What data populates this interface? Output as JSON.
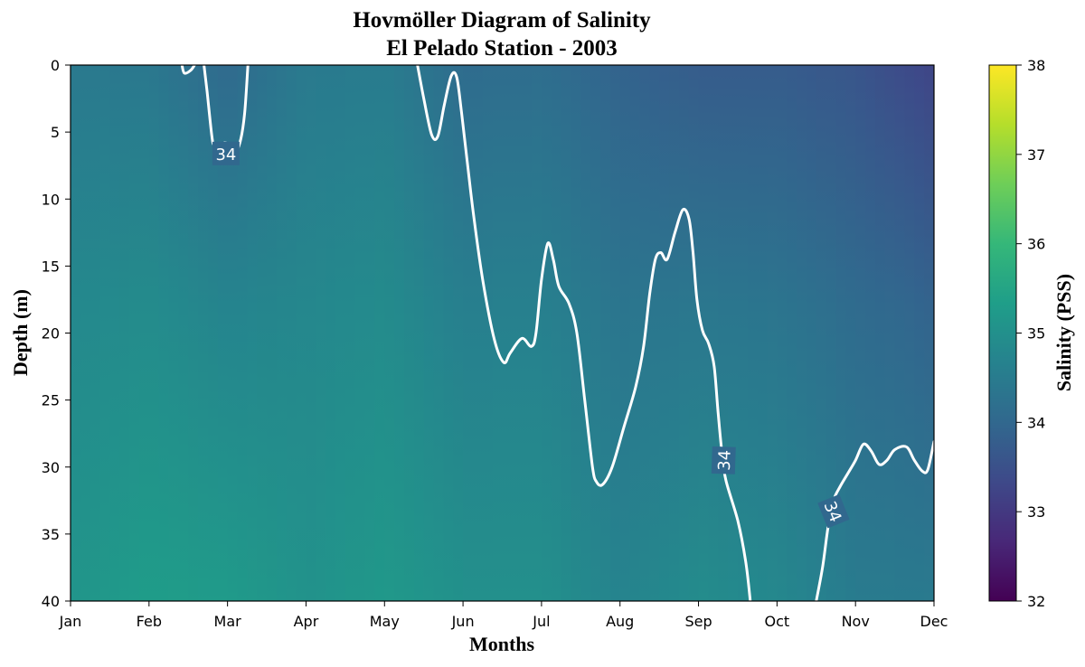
{
  "chart_data": {
    "type": "heatmap",
    "title_lines": [
      "Hovmöller Diagram of Salinity",
      "El Pelado Station - 2003"
    ],
    "xlabel": "Months",
    "ylabel": "Depth (m)",
    "colorbar_label": "Salinity (PSS)",
    "colormap": "viridis",
    "colormap_stops": [
      "#440154",
      "#482878",
      "#3e4989",
      "#31688e",
      "#26828e",
      "#1f9e89",
      "#35b779",
      "#6ece58",
      "#b5de2b",
      "#fde725"
    ],
    "x_categories": [
      "Jan",
      "Feb",
      "Mar",
      "Apr",
      "May",
      "Jun",
      "Jul",
      "Aug",
      "Sep",
      "Oct",
      "Nov",
      "Dec"
    ],
    "ylim": [
      40,
      0
    ],
    "y_ticks": [
      0,
      5,
      10,
      15,
      20,
      25,
      30,
      35,
      40
    ],
    "clim": [
      32,
      38
    ],
    "colorbar_ticks": [
      32,
      33,
      34,
      35,
      36,
      37,
      38
    ],
    "surface_salinity": [
      34.45,
      34.4,
      34.05,
      34.45,
      34.5,
      34.1,
      34.15,
      33.9,
      33.75,
      33.75,
      33.6,
      33.25
    ],
    "bottom_salinity": [
      35.1,
      35.3,
      35.25,
      35.05,
      35.2,
      35.0,
      35.0,
      34.7,
      34.9,
      34.8,
      34.5,
      34.45
    ],
    "contour": {
      "level": 34,
      "color": "#ffffff",
      "segments": [
        [
          [
            1.42,
            0
          ],
          [
            1.45,
            0.6
          ],
          [
            1.53,
            0.4
          ],
          [
            1.58,
            0
          ]
        ],
        [
          [
            1.7,
            0
          ],
          [
            1.74,
            2
          ],
          [
            1.8,
            5.3
          ],
          [
            1.83,
            6.0
          ],
          [
            1.9,
            6.2
          ],
          [
            1.96,
            5.8
          ],
          [
            2.03,
            6.0
          ],
          [
            2.1,
            6.5
          ],
          [
            2.17,
            5.5
          ],
          [
            2.22,
            3.5
          ],
          [
            2.26,
            0
          ]
        ],
        [
          [
            4.42,
            0
          ],
          [
            4.5,
            2.5
          ],
          [
            4.6,
            5.2
          ],
          [
            4.68,
            5.3
          ],
          [
            4.76,
            3
          ],
          [
            4.85,
            0.8
          ],
          [
            4.92,
            0.9
          ],
          [
            4.98,
            3.5
          ],
          [
            5.05,
            7
          ],
          [
            5.13,
            11
          ],
          [
            5.25,
            16
          ],
          [
            5.4,
            20.5
          ],
          [
            5.52,
            22.2
          ],
          [
            5.6,
            21.5
          ],
          [
            5.75,
            20.4
          ],
          [
            5.87,
            21
          ],
          [
            5.93,
            20
          ],
          [
            6.0,
            16
          ],
          [
            6.08,
            13.3
          ],
          [
            6.15,
            14.5
          ],
          [
            6.22,
            16.5
          ],
          [
            6.35,
            17.8
          ],
          [
            6.45,
            20
          ],
          [
            6.55,
            25
          ],
          [
            6.65,
            30
          ],
          [
            6.7,
            31.1
          ],
          [
            6.78,
            31.3
          ],
          [
            6.9,
            30
          ],
          [
            7.05,
            27
          ],
          [
            7.2,
            24
          ],
          [
            7.3,
            21
          ],
          [
            7.38,
            17
          ],
          [
            7.45,
            14.5
          ],
          [
            7.52,
            14
          ],
          [
            7.6,
            14.5
          ],
          [
            7.7,
            12.5
          ],
          [
            7.8,
            10.8
          ],
          [
            7.88,
            11.5
          ],
          [
            7.93,
            14
          ],
          [
            7.98,
            17.5
          ],
          [
            8.05,
            19.8
          ],
          [
            8.13,
            20.8
          ],
          [
            8.2,
            22.5
          ],
          [
            8.25,
            26
          ],
          [
            8.3,
            29
          ],
          [
            8.35,
            31
          ],
          [
            8.5,
            34
          ],
          [
            8.6,
            37
          ],
          [
            8.66,
            40
          ]
        ],
        [
          [
            9.5,
            40
          ],
          [
            9.58,
            37.5
          ],
          [
            9.65,
            34.5
          ],
          [
            9.72,
            32.5
          ],
          [
            9.8,
            31.5
          ],
          [
            9.9,
            30.5
          ],
          [
            10.0,
            29.5
          ],
          [
            10.1,
            28.3
          ],
          [
            10.2,
            28.8
          ],
          [
            10.3,
            29.8
          ],
          [
            10.4,
            29.5
          ],
          [
            10.5,
            28.7
          ],
          [
            10.65,
            28.5
          ],
          [
            10.75,
            29.5
          ],
          [
            10.85,
            30.3
          ],
          [
            10.92,
            30.2
          ],
          [
            11.0,
            28.1
          ]
        ]
      ],
      "labels": [
        {
          "text": "34",
          "x": 1.98,
          "y": 6.6,
          "rotation": 0
        },
        {
          "text": "34",
          "x": 8.32,
          "y": 29.5,
          "rotation": -88
        },
        {
          "text": "34",
          "x": 9.72,
          "y": 33.3,
          "rotation": 68
        }
      ]
    }
  }
}
